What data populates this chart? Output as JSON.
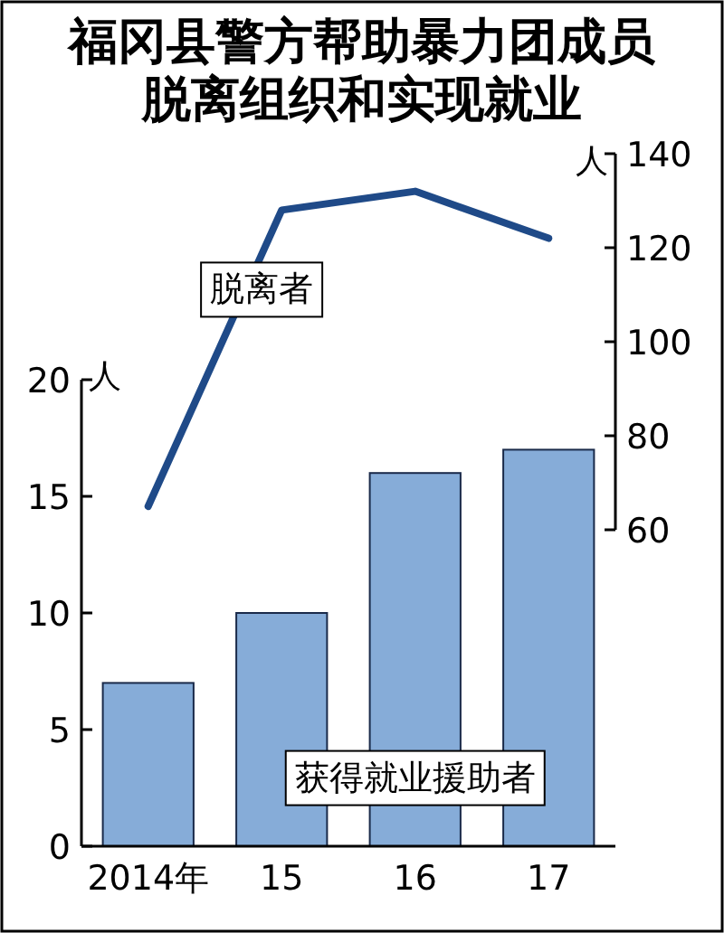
{
  "chart_data": {
    "type": "bar",
    "title": "福冈县警方帮助暴力团成员脱离组织和实现就业",
    "ylabel": "人",
    "y2label": "人",
    "categories": [
      "2014年",
      "15",
      "16",
      "17"
    ],
    "series": [
      {
        "name": "获得就业援助者",
        "color": "#86acd8",
        "values": [
          7,
          10,
          16,
          17
        ]
      },
      {
        "name": "脱离者",
        "type": "line",
        "axis": "y2",
        "color": "#1f4a88",
        "values": [
          65,
          128,
          132,
          122
        ]
      }
    ],
    "ylim": [
      0,
      20
    ],
    "yticks": [
      0,
      5,
      10,
      15,
      20
    ],
    "y2lim": [
      60,
      140
    ],
    "y2ticks": [
      60,
      80,
      100,
      120,
      140
    ]
  }
}
